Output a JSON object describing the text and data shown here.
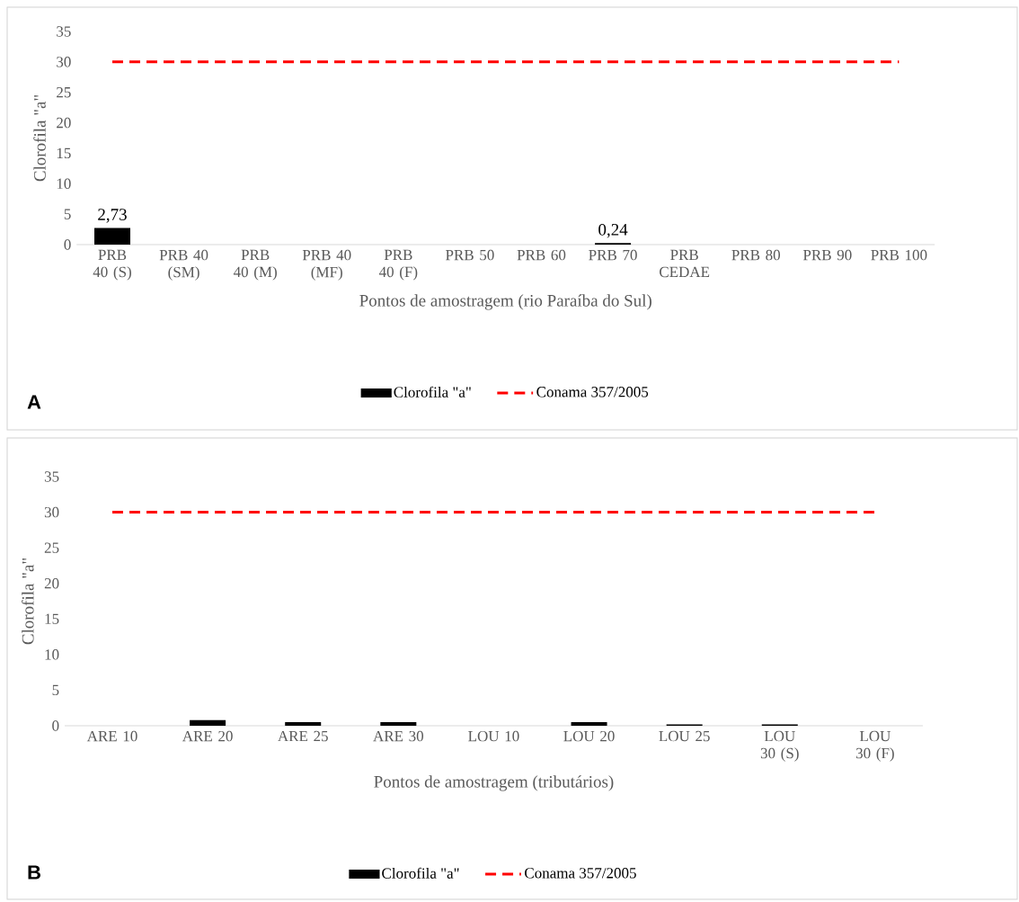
{
  "chart_data": [
    {
      "type": "bar",
      "categories": [
        "PRB 40 (S)",
        "PRB 40 (SM)",
        "PRB 40 (M)",
        "PRB 40 (MF)",
        "PRB 40 (F)",
        "PRB 50",
        "PRB 60",
        "PRB 70",
        "PRB CEDAE",
        "PRB 80",
        "PRB 90",
        "PRB 100"
      ],
      "series": [
        {
          "name": "Clorofila \"a\"",
          "color": "#000000",
          "values": [
            2.73,
            null,
            null,
            null,
            null,
            null,
            null,
            0.24,
            null,
            null,
            null,
            null
          ],
          "value_labels": [
            "2,73",
            null,
            null,
            null,
            null,
            null,
            null,
            "0,24",
            null,
            null,
            null,
            null
          ]
        }
      ],
      "ylim": [
        0,
        35
      ],
      "yticks": [
        0,
        5,
        10,
        15,
        20,
        25,
        30,
        35
      ],
      "ylabel": "Clorofila \"a\"",
      "xlabel": "Pontos de amostragem (rio Paraíba do Sul)",
      "legend": "bottom",
      "ref_lines": [
        {
          "axis": "y",
          "value": 30,
          "label": "Conama 357/2005",
          "color": "#ff0000",
          "line_style": "dashed"
        }
      ],
      "annotations": [
        "A"
      ]
    },
    {
      "type": "bar",
      "categories": [
        "ARE 10",
        "ARE 20",
        "ARE 25",
        "ARE 30",
        "LOU 10",
        "LOU 20",
        "LOU 25",
        "LOU 30 (S)",
        "LOU 30 (F)"
      ],
      "series": [
        {
          "name": "Clorofila \"a\"",
          "color": "#000000",
          "values": [
            null,
            0.8,
            0.5,
            0.5,
            null,
            0.5,
            0.2,
            0.2,
            null
          ]
        }
      ],
      "ylim": [
        0,
        35
      ],
      "yticks": [
        0,
        5,
        10,
        15,
        20,
        25,
        30,
        35
      ],
      "ylabel": "Clorofila \"a\"",
      "xlabel": "Pontos de amostragem (tributários)",
      "legend": "bottom",
      "ref_lines": [
        {
          "axis": "y",
          "value": 30,
          "label": "Conama 357/2005",
          "color": "#ff0000",
          "line_style": "dashed"
        }
      ],
      "annotations": [
        "B"
      ]
    }
  ]
}
